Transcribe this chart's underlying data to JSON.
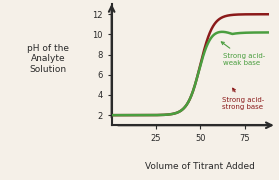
{
  "background_color": "#f5f0e8",
  "ylabel": "pH of the\nAnalyte\nSolution",
  "xlabel": "Volume of Titrant Added",
  "xlim": [
    0,
    90
  ],
  "ylim": [
    1,
    13
  ],
  "xticks": [
    25,
    50,
    75
  ],
  "yticks": [
    2,
    4,
    6,
    8,
    10,
    12
  ],
  "curve_green_label": "Strong acid-\nweak base",
  "curve_red_label": "Strong acid-\nstrong base",
  "curve_green_color": "#4a9e3f",
  "curve_red_color": "#8b1a1a",
  "axis_color": "#2a2a2a",
  "font_color": "#2a2a2a"
}
